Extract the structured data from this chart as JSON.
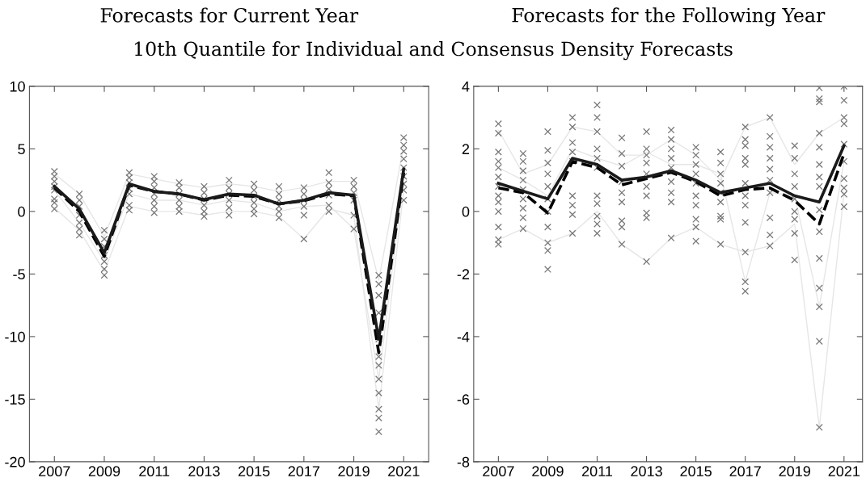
{
  "chart_data": [
    {
      "type": "line",
      "title": "Forecasts for Current Year",
      "subtitle": "10th Quantile for Individual and Consensus Density Forecasts",
      "x": [
        2007,
        2008,
        2009,
        2010,
        2011,
        2012,
        2013,
        2014,
        2015,
        2016,
        2017,
        2018,
        2019,
        2020,
        2021
      ],
      "xlim": [
        2006,
        2022
      ],
      "xticks": [
        2007,
        2009,
        2011,
        2013,
        2015,
        2017,
        2019,
        2021
      ],
      "ylim": [
        -20,
        10
      ],
      "yticks": [
        -20,
        -15,
        -10,
        -5,
        0,
        5,
        10
      ],
      "grid": false,
      "legend": false,
      "series": [
        {
          "color": "#e6e6e6",
          "values": [
            3.0,
            1.4,
            -2.0,
            3.0,
            2.6,
            2.2,
            1.9,
            2.2,
            2.0,
            1.6,
            1.9,
            2.4,
            2.4,
            -5.5,
            5.3
          ]
        },
        {
          "color": "#e6e6e6",
          "values": [
            0.3,
            -1.5,
            -4.8,
            0.4,
            0.0,
            0.0,
            -0.3,
            0.0,
            0.0,
            -0.4,
            -2.2,
            0.2,
            -0.3,
            -15.8,
            1.7
          ]
        },
        {
          "color": "#e6e6e6",
          "values": [
            1.7,
            -0.9,
            -4.0,
            1.4,
            0.9,
            0.9,
            0.5,
            0.9,
            0.7,
            0.0,
            0.4,
            0.5,
            -1.4,
            -13.4,
            2.8
          ]
        },
        {
          "type": "scatter",
          "marker": "cross",
          "color": "#777777",
          "x": [
            2007,
            2007,
            2007,
            2007,
            2007,
            2007,
            2007,
            2007,
            2008,
            2008,
            2008,
            2008,
            2008,
            2008,
            2008,
            2009,
            2009,
            2009,
            2009,
            2009,
            2009,
            2009,
            2010,
            2010,
            2010,
            2010,
            2010,
            2010,
            2010,
            2011,
            2011,
            2011,
            2011,
            2011,
            2011,
            2011,
            2012,
            2012,
            2012,
            2012,
            2012,
            2012,
            2013,
            2013,
            2013,
            2013,
            2013,
            2013,
            2014,
            2014,
            2014,
            2014,
            2014,
            2014,
            2015,
            2015,
            2015,
            2015,
            2015,
            2015,
            2016,
            2016,
            2016,
            2016,
            2016,
            2016,
            2017,
            2017,
            2017,
            2017,
            2017,
            2017,
            2018,
            2018,
            2018,
            2018,
            2018,
            2018,
            2019,
            2019,
            2019,
            2019,
            2019,
            2019,
            2020,
            2020,
            2020,
            2020,
            2020,
            2020,
            2020,
            2020,
            2020,
            2020,
            2020,
            2020,
            2021,
            2021,
            2021,
            2021,
            2021,
            2021,
            2021,
            2021,
            2021
          ],
          "values": [
            3.2,
            2.8,
            2.4,
            2.0,
            1.7,
            1.0,
            0.7,
            0.2,
            1.4,
            0.9,
            0.4,
            -0.3,
            -0.9,
            -1.4,
            -1.9,
            -1.5,
            -2.2,
            -2.8,
            -3.5,
            -4.0,
            -4.6,
            -5.1,
            3.1,
            2.7,
            2.3,
            1.8,
            1.4,
            0.5,
            0.1,
            2.8,
            2.4,
            1.9,
            1.4,
            0.9,
            0.4,
            -0.1,
            2.3,
            1.9,
            1.4,
            0.9,
            0.4,
            0.0,
            2.0,
            1.5,
            1.0,
            0.5,
            0.0,
            -0.4,
            2.5,
            1.9,
            1.4,
            0.9,
            0.3,
            -0.3,
            2.2,
            1.7,
            1.2,
            0.7,
            0.2,
            -0.2,
            2.0,
            1.4,
            0.9,
            0.4,
            0.0,
            -0.5,
            1.9,
            1.4,
            0.9,
            0.4,
            -0.3,
            -2.2,
            3.1,
            2.3,
            1.8,
            1.3,
            0.5,
            0.0,
            2.5,
            2.0,
            1.5,
            0.9,
            -0.3,
            -1.4,
            -5.1,
            -5.8,
            -6.7,
            -8.1,
            -10.2,
            -11.6,
            -12.3,
            -13.4,
            -14.5,
            -15.8,
            -16.5,
            -17.6,
            5.9,
            5.3,
            4.8,
            4.2,
            3.5,
            2.8,
            2.2,
            1.7,
            0.9
          ]
        },
        {
          "color": "#000000",
          "line_style": "dashed",
          "values": [
            1.9,
            0.0,
            -3.6,
            2.1,
            1.6,
            1.4,
            0.9,
            1.3,
            1.2,
            0.6,
            0.85,
            1.4,
            1.25,
            -11.3,
            3.1
          ]
        },
        {
          "color": "#1a1a1a",
          "line_style": "solid",
          "values": [
            2.0,
            0.2,
            -3.3,
            2.2,
            1.6,
            1.4,
            0.95,
            1.4,
            1.3,
            0.6,
            0.9,
            1.5,
            1.3,
            -10.2,
            3.4
          ]
        }
      ]
    },
    {
      "type": "line",
      "title": "Forecasts for the Following Year",
      "x": [
        2007,
        2008,
        2009,
        2010,
        2011,
        2012,
        2013,
        2014,
        2015,
        2016,
        2017,
        2018,
        2019,
        2020,
        2021
      ],
      "xlim": [
        2006,
        2021.75
      ],
      "xticks": [
        2007,
        2009,
        2011,
        2013,
        2015,
        2017,
        2019,
        2021
      ],
      "ylim": [
        -8,
        4
      ],
      "yticks": [
        -8,
        -6,
        -4,
        -2,
        0,
        2,
        4
      ],
      "grid": false,
      "legend": false,
      "series": [
        {
          "color": "#e6e6e6",
          "values": [
            2.6,
            1.2,
            1.5,
            2.7,
            2.55,
            1.8,
            1.8,
            2.3,
            1.8,
            1.0,
            2.7,
            3.0,
            1.5,
            2.5,
            3.0
          ]
        },
        {
          "color": "#e6e6e6",
          "values": [
            -0.9,
            -0.55,
            -1.0,
            -0.7,
            0.0,
            -1.05,
            -1.6,
            -0.85,
            -0.5,
            -1.05,
            -1.3,
            -1.1,
            -0.4,
            -6.9,
            0.6
          ]
        },
        {
          "color": "#e6e6e6",
          "values": [
            1.4,
            1.0,
            0.5,
            2.0,
            1.7,
            1.45,
            1.9,
            1.5,
            1.5,
            1.2,
            -2.25,
            0.6,
            0.5,
            -3.05,
            1.6
          ]
        },
        {
          "type": "scatter",
          "marker": "cross",
          "color": "#777777",
          "x": [
            2007,
            2007,
            2007,
            2007,
            2007,
            2007,
            2007,
            2007,
            2007,
            2007,
            2007,
            2007,
            2007,
            2008,
            2008,
            2008,
            2008,
            2008,
            2008,
            2008,
            2008,
            2008,
            2009,
            2009,
            2009,
            2009,
            2009,
            2009,
            2009,
            2009,
            2009,
            2009,
            2009,
            2010,
            2010,
            2010,
            2010,
            2010,
            2010,
            2010,
            2010,
            2010,
            2011,
            2011,
            2011,
            2011,
            2011,
            2011,
            2011,
            2011,
            2011,
            2011,
            2011,
            2012,
            2012,
            2012,
            2012,
            2012,
            2012,
            2012,
            2012,
            2012,
            2013,
            2013,
            2013,
            2013,
            2013,
            2013,
            2013,
            2013,
            2013,
            2013,
            2014,
            2014,
            2014,
            2014,
            2014,
            2014,
            2014,
            2014,
            2014,
            2015,
            2015,
            2015,
            2015,
            2015,
            2015,
            2015,
            2015,
            2015,
            2015,
            2016,
            2016,
            2016,
            2016,
            2016,
            2016,
            2016,
            2016,
            2016,
            2017,
            2017,
            2017,
            2017,
            2017,
            2017,
            2017,
            2017,
            2017,
            2017,
            2017,
            2017,
            2018,
            2018,
            2018,
            2018,
            2018,
            2018,
            2018,
            2018,
            2018,
            2018,
            2019,
            2019,
            2019,
            2019,
            2019,
            2019,
            2019,
            2019,
            2019,
            2020,
            2020,
            2020,
            2020,
            2020,
            2020,
            2020,
            2020,
            2020,
            2020,
            2020,
            2020,
            2020,
            2020,
            2020,
            2021,
            2021,
            2021,
            2021,
            2021,
            2021,
            2021,
            2021,
            2021,
            2021
          ],
          "values": [
            2.8,
            2.5,
            1.9,
            1.6,
            1.4,
            1.1,
            0.8,
            0.5,
            0.3,
            0.0,
            -0.5,
            -0.9,
            -1.05,
            1.85,
            1.6,
            1.3,
            1.0,
            0.7,
            0.4,
            0.1,
            -0.2,
            -0.55,
            2.55,
            1.95,
            1.55,
            1.2,
            0.8,
            0.4,
            0.0,
            -0.5,
            -1.0,
            -1.25,
            -1.85,
            3.0,
            2.7,
            2.2,
            1.9,
            1.6,
            0.5,
            0.2,
            -0.1,
            -0.7,
            3.4,
            3.0,
            2.55,
            2.0,
            1.7,
            1.4,
            0.5,
            0.25,
            -0.15,
            -0.4,
            -0.7,
            2.35,
            1.85,
            1.45,
            0.95,
            0.6,
            0.3,
            -0.3,
            -0.5,
            -1.05,
            2.55,
            2.0,
            1.8,
            1.55,
            1.2,
            0.8,
            0.5,
            -0.05,
            -0.2,
            -1.6,
            2.6,
            2.3,
            2.0,
            1.7,
            1.4,
            0.95,
            0.6,
            0.3,
            -0.85,
            2.05,
            1.8,
            1.5,
            1.2,
            0.9,
            0.5,
            0.2,
            -0.25,
            -0.5,
            -0.95,
            1.9,
            1.55,
            1.2,
            0.9,
            0.6,
            0.3,
            -0.15,
            -0.25,
            -1.05,
            2.7,
            2.3,
            2.1,
            1.7,
            1.5,
            0.9,
            0.5,
            0.2,
            -0.35,
            -1.3,
            -2.25,
            -2.55,
            3.0,
            2.4,
            2.05,
            1.7,
            1.35,
            1.0,
            0.6,
            -0.2,
            -0.75,
            -1.1,
            2.1,
            1.7,
            1.2,
            0.8,
            0.4,
            0.0,
            -0.25,
            -0.7,
            -1.55,
            3.95,
            3.6,
            3.5,
            2.5,
            2.05,
            1.5,
            1.1,
            0.8,
            0.05,
            -0.65,
            -1.5,
            -2.45,
            -3.05,
            -4.15,
            -6.9,
            4.0,
            3.55,
            3.0,
            2.8,
            2.15,
            1.6,
            1.05,
            0.75,
            0.55,
            0.15
          ]
        },
        {
          "color": "#000000",
          "line_style": "dashed",
          "values": [
            0.75,
            0.6,
            -0.05,
            1.6,
            1.4,
            0.85,
            1.05,
            1.25,
            0.95,
            0.5,
            0.7,
            0.75,
            0.35,
            -0.4,
            1.85
          ]
        },
        {
          "color": "#1a1a1a",
          "line_style": "solid",
          "values": [
            0.9,
            0.65,
            0.4,
            1.7,
            1.5,
            1.0,
            1.1,
            1.3,
            1.0,
            0.6,
            0.75,
            0.9,
            0.5,
            0.3,
            2.1
          ]
        }
      ]
    }
  ]
}
